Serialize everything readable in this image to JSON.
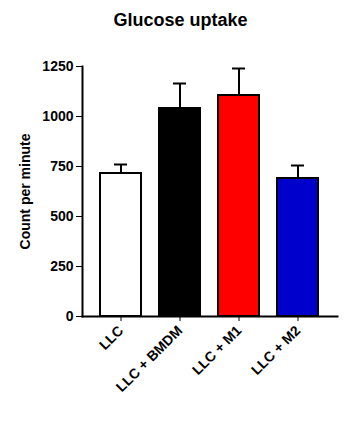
{
  "chart_data": {
    "type": "bar",
    "title": "Glucose uptake",
    "y_label": "Count per minute",
    "categories": [
      "LLC",
      "LLC + BMDM",
      "LLC + M1",
      "LLC + M2"
    ],
    "values": [
      715,
      1040,
      1105,
      690
    ],
    "errors": [
      45,
      125,
      135,
      65
    ],
    "colors": [
      "#ffffff",
      "#000000",
      "#ff0000",
      "#0000cc"
    ],
    "ylim": [
      0,
      1250
    ],
    "yticks": [
      0,
      250,
      500,
      750,
      1000,
      1250
    ]
  }
}
